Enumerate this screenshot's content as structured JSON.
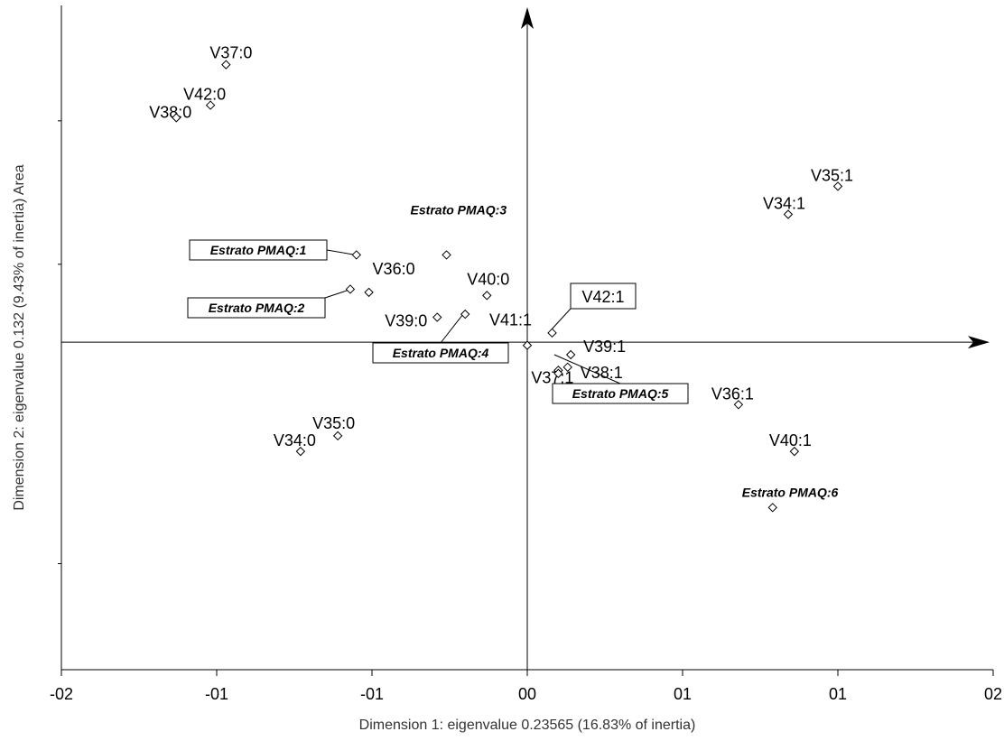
{
  "chart_data": {
    "type": "scatter",
    "title": "",
    "xlabel": "Dimension 1: eigenvalue  0.23565 (16.83% of inertia)",
    "ylabel": "Dimension 2: eigenvalue  0.132 (9.43% of inertia) Area",
    "xlim": [
      -1.5,
      1.5
    ],
    "ylim": [
      -1.05,
      1.08
    ],
    "x_ticks": [
      -1.5,
      -1.0,
      -0.5,
      0.0,
      0.5,
      1.0,
      1.5
    ],
    "x_tick_labels": [
      "-02",
      "-01",
      "-01",
      "00",
      "01",
      "01",
      "02"
    ],
    "y_ticks": [
      0.71,
      0.25,
      -0.71
    ],
    "grid": false,
    "points": [
      {
        "label": "V37:0",
        "x": -0.97,
        "y": 0.89,
        "style": "normal"
      },
      {
        "label": "V42:0",
        "x": -1.02,
        "y": 0.76,
        "style": "normal"
      },
      {
        "label": "V38:0",
        "x": -1.13,
        "y": 0.72,
        "style": "normal"
      },
      {
        "label": "V35:1",
        "x": 1.0,
        "y": 0.5,
        "style": "normal"
      },
      {
        "label": "V34:1",
        "x": 0.84,
        "y": 0.41,
        "style": "normal"
      },
      {
        "label": "Estrato PMAQ:3",
        "x": -0.26,
        "y": 0.28,
        "style": "category"
      },
      {
        "label": "Estrato PMAQ:1",
        "x": -0.55,
        "y": 0.28,
        "style": "category-boxed"
      },
      {
        "label": "V36:0",
        "x": -0.51,
        "y": 0.16,
        "style": "normal"
      },
      {
        "label": "V40:0",
        "x": -0.13,
        "y": 0.15,
        "style": "normal"
      },
      {
        "label": "Estrato PMAQ:2",
        "x": -0.57,
        "y": 0.17,
        "style": "category-boxed"
      },
      {
        "label": "V39:0",
        "x": -0.29,
        "y": 0.08,
        "style": "normal"
      },
      {
        "label": "Estrato PMAQ:4",
        "x": -0.2,
        "y": 0.09,
        "style": "category-boxed"
      },
      {
        "label": "V41:1",
        "x": 0.0,
        "y": -0.01,
        "style": "normal"
      },
      {
        "label": "V42:1",
        "x": 0.08,
        "y": 0.03,
        "style": "normal-boxed"
      },
      {
        "label": "V39:1",
        "x": 0.14,
        "y": -0.04,
        "style": "normal"
      },
      {
        "label": "V37:1",
        "x": 0.1,
        "y": -0.09,
        "style": "normal"
      },
      {
        "label": "V38:1",
        "x": 0.13,
        "y": -0.08,
        "style": "normal"
      },
      {
        "label": "Estrato PMAQ:5",
        "x": 0.1,
        "y": -0.1,
        "style": "category-boxed"
      },
      {
        "label": "V36:1",
        "x": 0.68,
        "y": -0.2,
        "style": "normal"
      },
      {
        "label": "V40:1",
        "x": 0.86,
        "y": -0.35,
        "style": "normal"
      },
      {
        "label": "Estrato PMAQ:6",
        "x": 0.79,
        "y": -0.53,
        "style": "category"
      },
      {
        "label": "V35:0",
        "x": -0.61,
        "y": -0.3,
        "style": "normal"
      },
      {
        "label": "V34:0",
        "x": -0.73,
        "y": -0.35,
        "style": "normal"
      }
    ]
  }
}
